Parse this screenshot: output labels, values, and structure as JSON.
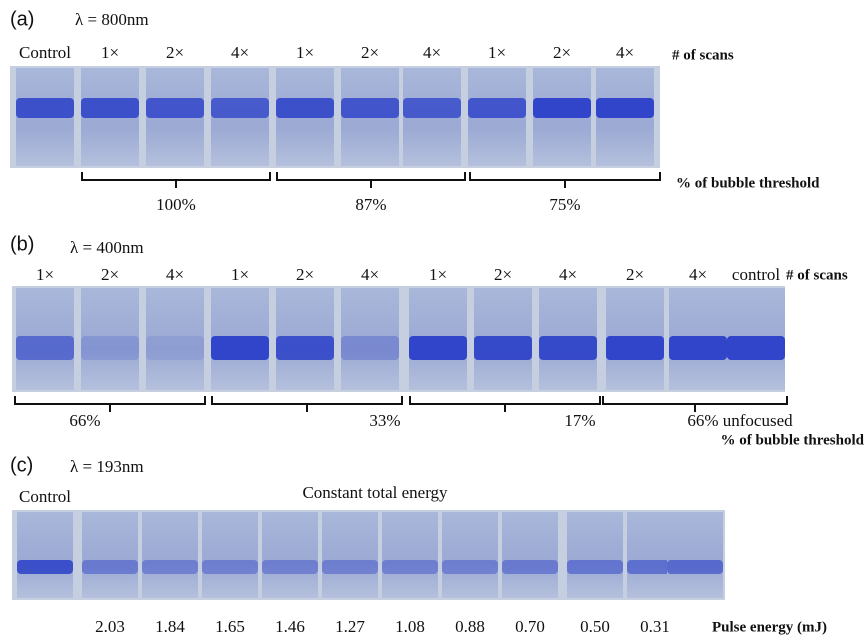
{
  "panels": [
    {
      "label": "(a)",
      "wavelength": "λ = 800nm",
      "lanes": [
        "Control",
        "1×",
        "2×",
        "4×",
        "1×",
        "2×",
        "4×",
        "1×",
        "2×",
        "4×"
      ],
      "scans_label": "# of scans",
      "groups": [
        "100%",
        "87%",
        "75%"
      ],
      "threshold_label": "% of bubble threshold"
    },
    {
      "label": "(b)",
      "wavelength": "λ = 400nm",
      "lanes": [
        "1×",
        "2×",
        "4×",
        "1×",
        "2×",
        "4×",
        "1×",
        "2×",
        "4×",
        "2×",
        "4×",
        "control"
      ],
      "scans_label": "# of scans",
      "groups": [
        "66%",
        "33%",
        "17%",
        "66% unfocused"
      ],
      "threshold_label": "% of bubble threshold"
    },
    {
      "label": "(c)",
      "wavelength": "λ = 193nm",
      "lanes": [
        "Control"
      ],
      "caption": "Constant total energy",
      "pulse_energies": [
        "2.03",
        "1.84",
        "1.65",
        "1.46",
        "1.27",
        "1.08",
        "0.88",
        "0.70",
        "0.50",
        "0.31"
      ],
      "pulse_label": "Pulse energy (mJ)"
    }
  ]
}
